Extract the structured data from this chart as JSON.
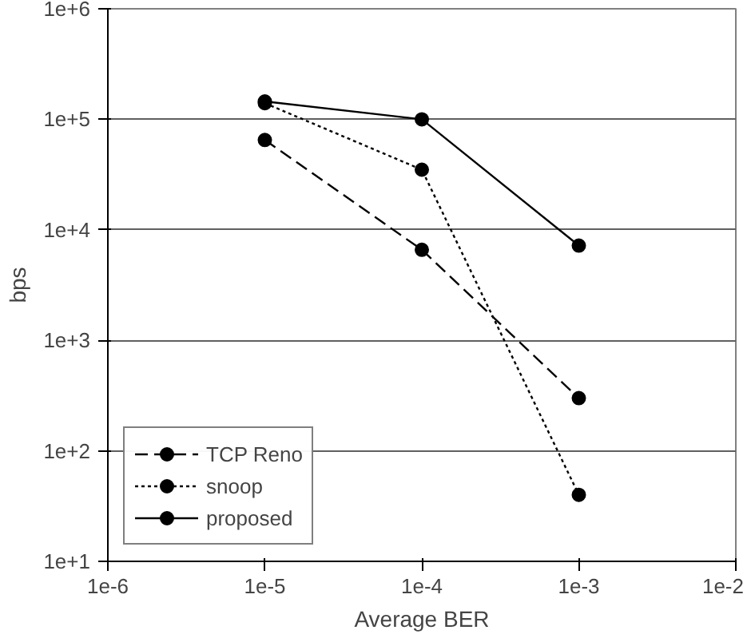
{
  "chart_data": {
    "type": "line",
    "xlabel": "Average BER",
    "ylabel": "bps",
    "log": "xy",
    "xlim": [
      1e-06,
      0.01
    ],
    "xticks": [
      {
        "value": 1e-06,
        "label": "1e-6"
      },
      {
        "value": 1e-05,
        "label": "1e-5"
      },
      {
        "value": 0.0001,
        "label": "1e-4"
      },
      {
        "value": 0.001,
        "label": "1e-3"
      },
      {
        "value": 0.01,
        "label": "1e-2"
      }
    ],
    "ylim": [
      10,
      1000000
    ],
    "yticks": [
      {
        "value": 10,
        "label": "1e+1"
      },
      {
        "value": 100,
        "label": "1e+2"
      },
      {
        "value": 1000,
        "label": "1e+3"
      },
      {
        "value": 10000,
        "label": "1e+4"
      },
      {
        "value": 100000,
        "label": "1e+5"
      },
      {
        "value": 1000000,
        "label": "1e+6"
      }
    ],
    "x": [
      1e-05,
      0.0001,
      0.001
    ],
    "grid": "y",
    "legend": "bottom left",
    "marker": "circle",
    "series": [
      {
        "name": "TCP Reno",
        "color": "#000000",
        "line_style": "dashed",
        "values": [
          65000,
          6600,
          300
        ]
      },
      {
        "name": "snoop",
        "color": "#000000",
        "line_style": "dotted",
        "values": [
          140000,
          35000,
          40
        ]
      },
      {
        "name": "proposed",
        "color": "#000000",
        "line_style": "solid",
        "values": [
          145000,
          100000,
          7200
        ]
      }
    ]
  }
}
